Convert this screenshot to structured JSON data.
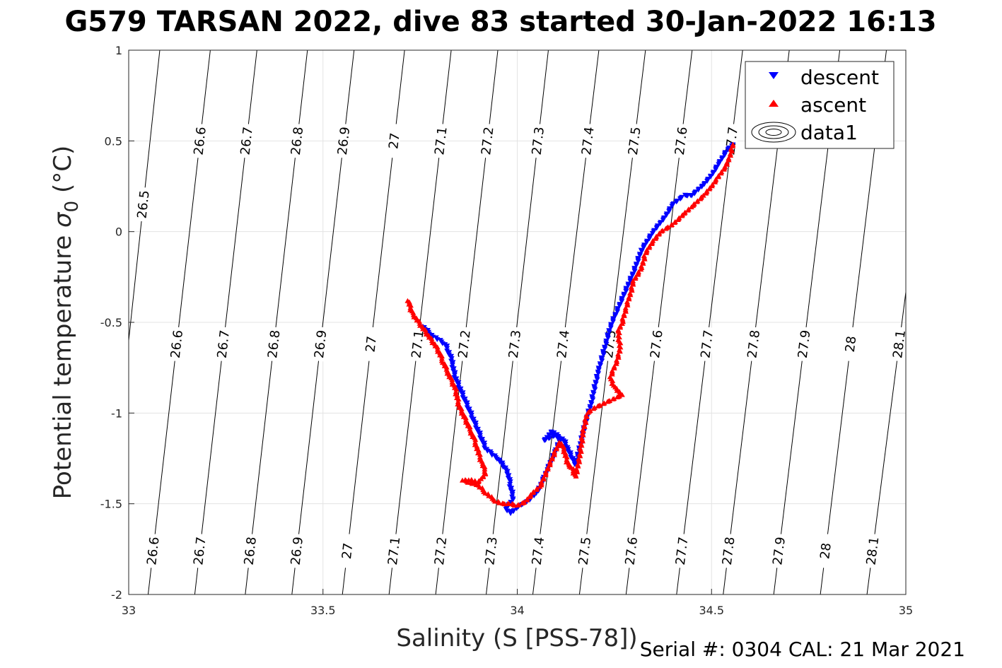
{
  "title": "G579 TARSAN 2022, dive 83 started 30-Jan-2022 16:13",
  "footer": "Serial #: 0304  CAL: 21 Mar 2021",
  "chart_data": {
    "type": "scatter",
    "xlabel": "Salinity (S [PSS-78])",
    "ylabel_main": "Potential temperature ",
    "ylabel_sigma": "σ",
    "ylabel_sub": "0",
    "ylabel_unit": " (°C)",
    "xlim": [
      33,
      35
    ],
    "ylim": [
      -2,
      1
    ],
    "xticks": [
      33,
      33.5,
      34,
      34.5,
      35
    ],
    "xtick_labels": [
      "33",
      "33.5",
      "34",
      "34.5",
      "35"
    ],
    "yticks": [
      1,
      0.5,
      0,
      -0.5,
      -1,
      -1.5,
      -2
    ],
    "ytick_labels": [
      "1",
      "0.5",
      "0",
      "-0.5",
      "-1",
      "-1.5",
      "-2"
    ],
    "grid": true,
    "legend_position": "top-right",
    "legend": [
      "descent",
      "ascent",
      "data1"
    ],
    "contours": {
      "levels": [
        26.5,
        26.6,
        26.7,
        26.8,
        26.9,
        27,
        27.1,
        27.2,
        27.3,
        27.4,
        27.5,
        27.6,
        27.7,
        27.8,
        27.9,
        28,
        28.1
      ],
      "level_labels": [
        "26.5",
        "26.6",
        "26.7",
        "26.8",
        "26.9",
        "27",
        "27.1",
        "27.2",
        "27.3",
        "27.4",
        "27.5",
        "27.6",
        "27.7",
        "27.8",
        "27.9",
        "28",
        "28.1"
      ],
      "salinity_at_top": [
        33.08,
        33.21,
        33.33,
        33.46,
        33.58,
        33.71,
        33.83,
        33.95,
        34.08,
        34.21,
        34.33,
        34.45,
        34.58,
        34.7,
        34.83,
        34.95,
        35.08
      ],
      "salinity_at_bottom": [
        32.93,
        33.05,
        33.17,
        33.3,
        33.42,
        33.55,
        33.67,
        33.79,
        33.92,
        34.04,
        34.16,
        34.28,
        34.41,
        34.53,
        34.66,
        34.78,
        34.9
      ],
      "label_rows": [
        {
          "temperature": 0.5,
          "levels": [
            26.6,
            26.7,
            26.8,
            26.9,
            27,
            27.1,
            27.2,
            27.3,
            27.4,
            27.5,
            27.6,
            27.7
          ]
        },
        {
          "temperature": 0.15,
          "levels": [
            26.5
          ]
        },
        {
          "temperature": -0.62,
          "levels": [
            26.6,
            26.7,
            26.8,
            26.9,
            27,
            27.1,
            27.2,
            27.3,
            27.4,
            27.5,
            27.6,
            27.7,
            27.8,
            27.9,
            28,
            28.1
          ]
        },
        {
          "temperature": -1.76,
          "levels": [
            26.6,
            26.7,
            26.8,
            26.9,
            27,
            27.1,
            27.2,
            27.3,
            27.4,
            27.5,
            27.6,
            27.7,
            27.8,
            27.9,
            28,
            28.1
          ]
        }
      ]
    },
    "series": [
      {
        "name": "descent",
        "marker": "triangle-down",
        "color": "#0000ff",
        "path": [
          [
            33.755,
            -0.52
          ],
          [
            33.78,
            -0.57
          ],
          [
            33.8,
            -0.6
          ],
          [
            33.815,
            -0.62
          ],
          [
            33.83,
            -0.7
          ],
          [
            33.84,
            -0.8
          ],
          [
            33.86,
            -0.9
          ],
          [
            33.88,
            -1.0
          ],
          [
            33.9,
            -1.1
          ],
          [
            33.92,
            -1.2
          ],
          [
            33.95,
            -1.25
          ],
          [
            33.975,
            -1.32
          ],
          [
            33.98,
            -1.38
          ],
          [
            33.99,
            -1.47
          ],
          [
            33.97,
            -1.53
          ],
          [
            33.985,
            -1.55
          ],
          [
            34.0,
            -1.52
          ],
          [
            34.03,
            -1.48
          ],
          [
            34.05,
            -1.44
          ],
          [
            34.06,
            -1.4
          ],
          [
            34.07,
            -1.35
          ],
          [
            34.08,
            -1.3
          ],
          [
            34.09,
            -1.25
          ],
          [
            34.1,
            -1.2
          ],
          [
            34.11,
            -1.15
          ],
          [
            34.09,
            -1.1
          ],
          [
            34.07,
            -1.15
          ],
          [
            34.1,
            -1.12
          ],
          [
            34.12,
            -1.15
          ],
          [
            34.13,
            -1.2
          ],
          [
            34.15,
            -1.28
          ],
          [
            34.16,
            -1.2
          ],
          [
            34.17,
            -1.1
          ],
          [
            34.18,
            -1.02
          ],
          [
            34.19,
            -0.95
          ],
          [
            34.2,
            -0.85
          ],
          [
            34.21,
            -0.76
          ],
          [
            34.22,
            -0.68
          ],
          [
            34.23,
            -0.6
          ],
          [
            34.24,
            -0.52
          ],
          [
            34.26,
            -0.42
          ],
          [
            34.28,
            -0.32
          ],
          [
            34.3,
            -0.22
          ],
          [
            34.32,
            -0.1
          ],
          [
            34.35,
            0.0
          ],
          [
            34.38,
            0.08
          ],
          [
            34.4,
            0.15
          ],
          [
            34.43,
            0.2
          ],
          [
            34.45,
            0.2
          ],
          [
            34.48,
            0.26
          ],
          [
            34.5,
            0.31
          ],
          [
            34.52,
            0.38
          ],
          [
            34.54,
            0.45
          ],
          [
            34.555,
            0.48
          ]
        ]
      },
      {
        "name": "ascent",
        "marker": "triangle-up",
        "color": "#ff0000",
        "path": [
          [
            33.72,
            -0.38
          ],
          [
            33.725,
            -0.42
          ],
          [
            33.73,
            -0.45
          ],
          [
            33.79,
            -0.63
          ],
          [
            33.8,
            -0.67
          ],
          [
            33.81,
            -0.72
          ],
          [
            33.82,
            -0.77
          ],
          [
            33.83,
            -0.82
          ],
          [
            33.84,
            -0.86
          ],
          [
            33.85,
            -0.96
          ],
          [
            33.87,
            -1.05
          ],
          [
            33.88,
            -1.1
          ],
          [
            33.89,
            -1.15
          ],
          [
            33.9,
            -1.22
          ],
          [
            33.91,
            -1.28
          ],
          [
            33.92,
            -1.33
          ],
          [
            33.9,
            -1.38
          ],
          [
            33.88,
            -1.37
          ],
          [
            33.86,
            -1.37
          ],
          [
            33.9,
            -1.4
          ],
          [
            33.92,
            -1.44
          ],
          [
            33.94,
            -1.48
          ],
          [
            33.96,
            -1.5
          ],
          [
            33.98,
            -1.5
          ],
          [
            34.0,
            -1.51
          ],
          [
            34.02,
            -1.49
          ],
          [
            34.04,
            -1.44
          ],
          [
            34.06,
            -1.4
          ],
          [
            34.08,
            -1.3
          ],
          [
            34.1,
            -1.2
          ],
          [
            34.11,
            -1.16
          ],
          [
            34.12,
            -1.2
          ],
          [
            34.13,
            -1.28
          ],
          [
            34.14,
            -1.3
          ],
          [
            34.15,
            -1.35
          ],
          [
            34.16,
            -1.25
          ],
          [
            34.17,
            -1.1
          ],
          [
            34.18,
            -1.0
          ],
          [
            34.2,
            -0.97
          ],
          [
            34.22,
            -0.95
          ],
          [
            34.24,
            -0.93
          ],
          [
            34.27,
            -0.9
          ],
          [
            34.25,
            -0.86
          ],
          [
            34.24,
            -0.8
          ],
          [
            34.255,
            -0.72
          ],
          [
            34.265,
            -0.65
          ],
          [
            34.26,
            -0.55
          ],
          [
            34.27,
            -0.5
          ],
          [
            34.28,
            -0.42
          ],
          [
            34.29,
            -0.35
          ],
          [
            34.3,
            -0.27
          ],
          [
            34.32,
            -0.2
          ],
          [
            34.33,
            -0.12
          ],
          [
            34.35,
            -0.05
          ],
          [
            34.37,
            0.0
          ],
          [
            34.4,
            0.04
          ],
          [
            34.43,
            0.1
          ],
          [
            34.45,
            0.14
          ],
          [
            34.48,
            0.2
          ],
          [
            34.5,
            0.25
          ],
          [
            34.52,
            0.31
          ],
          [
            34.54,
            0.37
          ],
          [
            34.55,
            0.44
          ],
          [
            34.555,
            0.48
          ]
        ]
      }
    ]
  }
}
